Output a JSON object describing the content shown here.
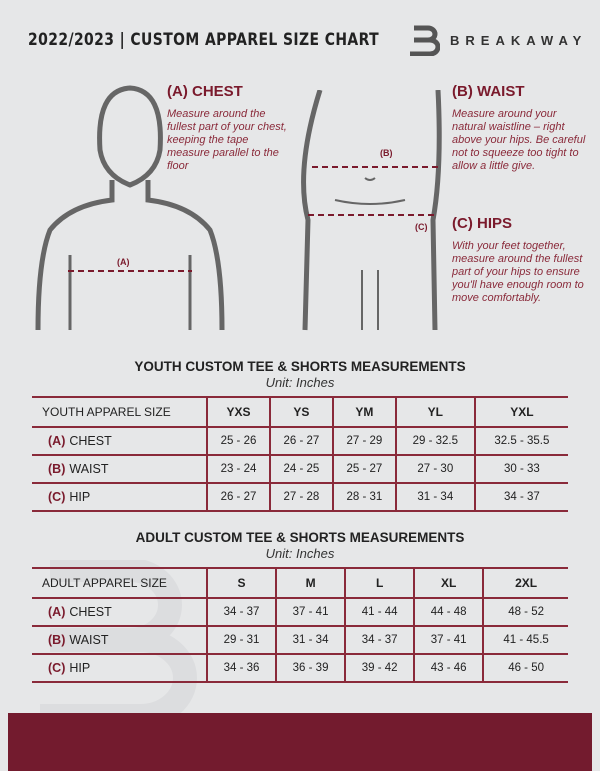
{
  "header": {
    "title": "2022/2023 | CUSTOM APPAREL SIZE CHART",
    "brand": "BREAKAWAY",
    "logo_letter": "B"
  },
  "chest": {
    "heading": "(A) CHEST",
    "text": "Measure around the fullest part of your chest, keeping the tape measure parallel to the floor",
    "marker": "(A)"
  },
  "waist": {
    "heading": "(B) WAIST",
    "text": "Measure around your natural waistline – right above your hips. Be careful not to squeeze too tight to allow a little give.",
    "marker": "(B)"
  },
  "hips": {
    "heading": "(C) HIPS",
    "text": "With your feet together, measure around the fullest part of your hips to ensure you'll have enough room to move comfortably.",
    "marker": "(C)"
  },
  "youth": {
    "title": "YOUTH CUSTOM TEE & SHORTS MEASUREMENTS",
    "unit": "Unit: Inches",
    "size_label": "YOUTH APPAREL SIZE",
    "sizes": [
      "YXS",
      "YS",
      "YM",
      "YL",
      "YXL"
    ],
    "rows": [
      {
        "tag": "(A)",
        "name": "CHEST",
        "values": [
          "25 - 26",
          "26 - 27",
          "27 - 29",
          "29 - 32.5",
          "32.5 - 35.5"
        ]
      },
      {
        "tag": "(B)",
        "name": "WAIST",
        "values": [
          "23 - 24",
          "24 - 25",
          "25 - 27",
          "27 - 30",
          "30 - 33"
        ]
      },
      {
        "tag": "(C)",
        "name": "HIP",
        "values": [
          "26 - 27",
          "27 - 28",
          "28 - 31",
          "31 - 34",
          "34 - 37"
        ]
      }
    ]
  },
  "adult": {
    "title": "ADULT CUSTOM TEE & SHORTS MEASUREMENTS",
    "unit": "Unit: Inches",
    "size_label": "ADULT APPAREL SIZE",
    "sizes": [
      "S",
      "M",
      "L",
      "XL",
      "2XL"
    ],
    "rows": [
      {
        "tag": "(A)",
        "name": "CHEST",
        "values": [
          "34 - 37",
          "37 - 41",
          "41 - 44",
          "44 - 48",
          "48 - 52"
        ]
      },
      {
        "tag": "(B)",
        "name": "WAIST",
        "values": [
          "29 - 31",
          "31 - 34",
          "34 - 37",
          "37 - 41",
          "41 - 45.5"
        ]
      },
      {
        "tag": "(C)",
        "name": "HIP",
        "values": [
          "34 - 36",
          "36 - 39",
          "39 - 42",
          "43 - 46",
          "46 - 50"
        ]
      }
    ]
  },
  "colors": {
    "accent": "#731b2e",
    "background": "#e6e7e8"
  }
}
